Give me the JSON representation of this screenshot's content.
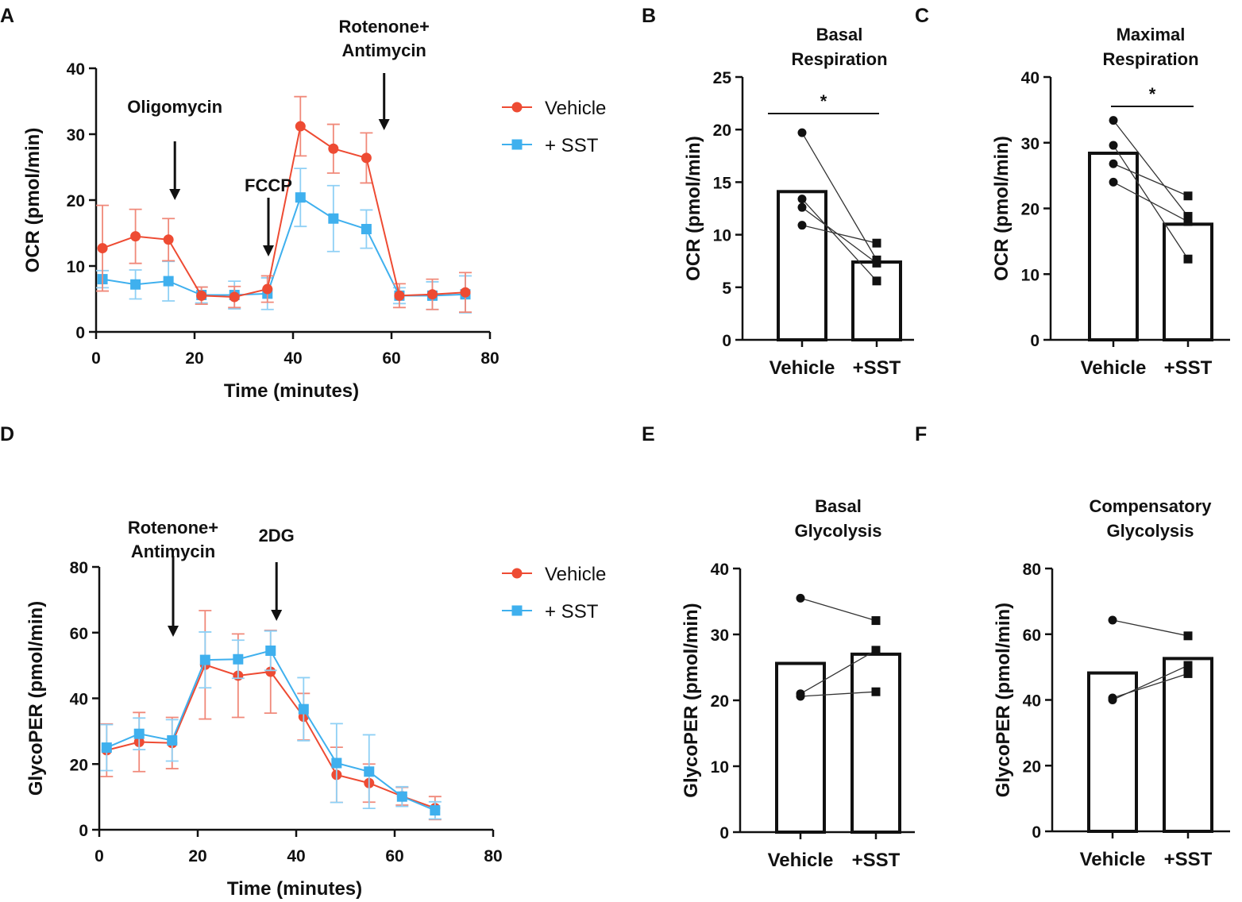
{
  "colors": {
    "vehicle": "#ee4b33",
    "sst": "#3fb0ee",
    "vehicle_err": "#f0897a",
    "sst_err": "#8fd0f5",
    "ink": "#111111"
  },
  "chart_data": [
    {
      "id": "A",
      "type": "line",
      "panel_label": "A",
      "xlabel": "Time (minutes)",
      "ylabel": "OCR (pmol/min)",
      "xlim": [
        0,
        80
      ],
      "ylim": [
        0,
        40
      ],
      "xticks": [
        0,
        20,
        40,
        60,
        80
      ],
      "yticks": [
        0,
        10,
        20,
        30,
        40
      ],
      "legend": [
        "Vehicle",
        "+ SST"
      ],
      "series": [
        {
          "name": "Vehicle",
          "x": [
            1.3,
            8,
            14.7,
            21.4,
            28.1,
            34.8,
            41.5,
            48.2,
            54.9,
            61.6,
            68.3,
            75
          ],
          "y": [
            12.7,
            14.5,
            14.0,
            5.5,
            5.3,
            6.5,
            31.2,
            27.8,
            26.4,
            5.5,
            5.7,
            6.0
          ],
          "err": [
            6.5,
            4.1,
            3.2,
            1.3,
            1.6,
            2.0,
            4.5,
            3.7,
            3.8,
            1.8,
            2.3,
            3.0
          ]
        },
        {
          "name": "+ SST",
          "x": [
            1.3,
            8,
            14.7,
            21.4,
            28.1,
            34.8,
            41.5,
            48.2,
            54.9,
            61.6,
            68.3,
            75
          ],
          "y": [
            8.0,
            7.2,
            7.7,
            5.6,
            5.6,
            5.8,
            20.4,
            17.2,
            15.6,
            5.5,
            5.5,
            5.7
          ],
          "err": [
            1.3,
            2.2,
            3.0,
            1.2,
            2.1,
            2.4,
            4.4,
            5.0,
            2.9,
            1.2,
            2.1,
            2.8
          ]
        }
      ],
      "annotations": [
        {
          "text": [
            "Oligomycin"
          ],
          "x": 16
        },
        {
          "text": [
            "FCCP"
          ],
          "x": 35
        },
        {
          "text": [
            "Rotenone+",
            "Antimycin"
          ],
          "x": 58.5
        }
      ]
    },
    {
      "id": "B",
      "type": "bar",
      "panel_label": "B",
      "title": [
        "Basal",
        "Respiration"
      ],
      "ylabel": "OCR (pmol/min)",
      "categories": [
        "Vehicle",
        "+SST"
      ],
      "values": [
        14.1,
        7.4
      ],
      "ylim": [
        0,
        25
      ],
      "yticks": [
        0,
        5,
        10,
        15,
        20,
        25
      ],
      "points": {
        "Vehicle": [
          19.7,
          13.4,
          12.6,
          10.9
        ],
        "+SST": [
          9.2,
          7.6,
          7.3,
          5.6
        ]
      },
      "pairs": [
        [
          19.7,
          7.6
        ],
        [
          13.4,
          5.6
        ],
        [
          12.6,
          7.3
        ],
        [
          10.9,
          9.2
        ]
      ],
      "significance": "*"
    },
    {
      "id": "C",
      "type": "bar",
      "panel_label": "C",
      "title": [
        "Maximal",
        "Respiration"
      ],
      "ylabel": "OCR (pmol/min)",
      "categories": [
        "Vehicle",
        "+SST"
      ],
      "values": [
        28.4,
        17.6
      ],
      "ylim": [
        0,
        40
      ],
      "yticks": [
        0,
        10,
        20,
        30,
        40
      ],
      "points": {
        "Vehicle": [
          33.4,
          29.6,
          26.8,
          24.0
        ],
        "+SST": [
          21.9,
          18.8,
          18.0,
          12.3
        ]
      },
      "pairs": [
        [
          33.4,
          18.8
        ],
        [
          29.6,
          12.3
        ],
        [
          26.8,
          21.9
        ],
        [
          24.0,
          18.0
        ]
      ],
      "significance": "*"
    },
    {
      "id": "D",
      "type": "line",
      "panel_label": "D",
      "xlabel": "Time (minutes)",
      "ylabel": "GlycoPER (pmol/min)",
      "xlim": [
        0,
        80
      ],
      "ylim": [
        0,
        80
      ],
      "xticks": [
        0,
        20,
        40,
        60,
        80
      ],
      "yticks": [
        0,
        20,
        40,
        60,
        80
      ],
      "legend": [
        "Vehicle",
        "+ SST"
      ],
      "series": [
        {
          "name": "Vehicle",
          "x": [
            1.5,
            8.1,
            14.8,
            21.5,
            28.2,
            34.8,
            41.5,
            48.2,
            54.8,
            61.5,
            68.2
          ],
          "y": [
            24.2,
            26.7,
            26.4,
            50.2,
            46.9,
            48.1,
            34.4,
            16.7,
            14.2,
            10.2,
            6.6
          ],
          "err": [
            8.0,
            9.0,
            7.8,
            16.5,
            12.7,
            12.6,
            7.1,
            8.4,
            5.8,
            2.7,
            3.5
          ]
        },
        {
          "name": "+ SST",
          "x": [
            1.5,
            8.1,
            14.8,
            21.5,
            28.2,
            34.8,
            41.5,
            48.2,
            54.8,
            61.5,
            68.2
          ],
          "y": [
            25.0,
            29.2,
            27.2,
            51.7,
            51.9,
            54.5,
            36.7,
            20.3,
            17.7,
            10.1,
            5.9
          ],
          "err": [
            7.0,
            4.8,
            6.3,
            8.5,
            5.8,
            6.0,
            9.6,
            12.0,
            11.2,
            3.0,
            2.6
          ]
        }
      ],
      "annotations": [
        {
          "text": [
            "Rotenone+",
            "Antimycin"
          ],
          "x": 15
        },
        {
          "text": [
            "2DG"
          ],
          "x": 36
        }
      ]
    },
    {
      "id": "E",
      "type": "bar",
      "panel_label": "E",
      "title": [
        "Basal",
        "Glycolysis"
      ],
      "ylabel": "GlycoPER (pmol/min)",
      "categories": [
        "Vehicle",
        "+SST"
      ],
      "values": [
        25.6,
        27.0
      ],
      "ylim": [
        0,
        40
      ],
      "yticks": [
        0,
        10,
        20,
        30,
        40
      ],
      "points": {
        "Vehicle": [
          35.5,
          21.0,
          20.6
        ],
        "+SST": [
          32.1,
          27.6,
          21.3
        ]
      },
      "pairs": [
        [
          35.5,
          32.1
        ],
        [
          21.0,
          27.6
        ],
        [
          20.6,
          21.3
        ]
      ],
      "significance": ""
    },
    {
      "id": "F",
      "type": "bar",
      "panel_label": "F",
      "title": [
        "Compensatory",
        "Glycolysis"
      ],
      "ylabel": "GlycoPER (pmol/min)",
      "categories": [
        "Vehicle",
        "+SST"
      ],
      "values": [
        48.2,
        52.6
      ],
      "ylim": [
        0,
        80
      ],
      "yticks": [
        0,
        20,
        40,
        60,
        80
      ],
      "points": {
        "Vehicle": [
          64.3,
          40.6,
          40.0
        ],
        "+SST": [
          59.5,
          50.5,
          48.0
        ]
      },
      "pairs": [
        [
          64.3,
          59.5
        ],
        [
          40.6,
          48.0
        ],
        [
          40.0,
          50.5
        ]
      ],
      "significance": ""
    }
  ]
}
